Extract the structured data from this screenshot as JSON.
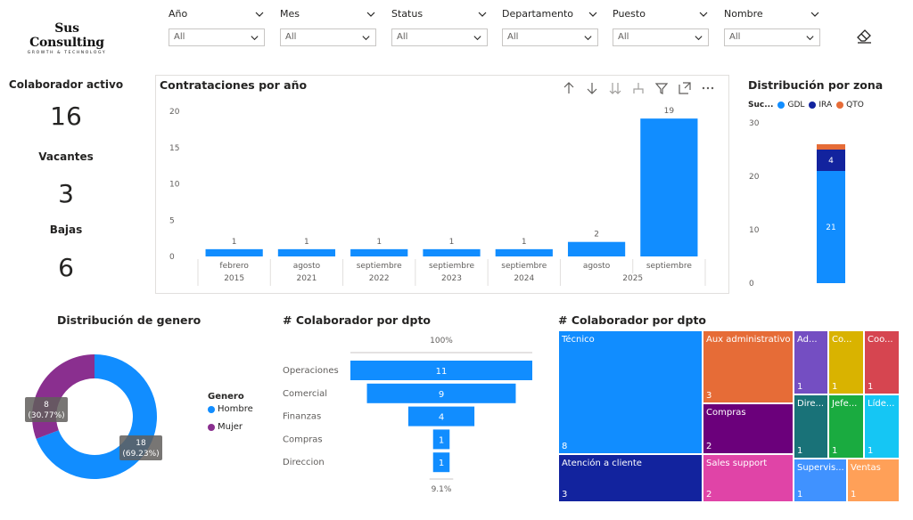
{
  "logo": {
    "name": "Sus Consulting",
    "tagline": "GROWTH & TECHNOLOGY"
  },
  "slicers": [
    {
      "label": "Año",
      "value": "All"
    },
    {
      "label": "Mes",
      "value": "All"
    },
    {
      "label": "Status",
      "value": "All"
    },
    {
      "label": "Departamento",
      "value": "All"
    },
    {
      "label": "Puesto",
      "value": "All"
    },
    {
      "label": "Nombre",
      "value": "All"
    }
  ],
  "kpis": {
    "activos_label": "Colaborador activo",
    "activos_value": "16",
    "vacantes_label": "Vacantes",
    "vacantes_value": "3",
    "bajas_label": "Bajas",
    "bajas_value": "6"
  },
  "contrataciones": {
    "title": "Contrataciones por año",
    "toolbar_icons": [
      "arrow-up-icon",
      "arrow-down-icon",
      "double-arrow-down-icon",
      "expand-hierarchy-icon",
      "filter-icon",
      "focus-mode-icon",
      "more-options-icon"
    ]
  },
  "zona": {
    "title": "Distribución por zona",
    "legend_title": "Suc...",
    "legend": [
      {
        "name": "GDL",
        "color": "#118DFF"
      },
      {
        "name": "IRA",
        "color": "#12239E"
      },
      {
        "name": "QTO",
        "color": "#E66C37"
      }
    ]
  },
  "genero": {
    "title": "Distribución de genero",
    "legend_title": "Genero",
    "legend": [
      {
        "name": "Hombre",
        "color": "#118DFF"
      },
      {
        "name": "Mujer",
        "color": "#8A2F8F"
      }
    ],
    "labels": {
      "mujer_value": "8",
      "mujer_pct": "(30.77%)",
      "hombre_value": "18",
      "hombre_pct": "(69.23%)"
    }
  },
  "funnel": {
    "title": "# Colaborador por dpto",
    "top_pct": "100%",
    "bottom_pct": "9.1%"
  },
  "treemap": {
    "title": "# Colaborador por dpto"
  },
  "chart_data": [
    {
      "type": "bar",
      "title": "Contrataciones por año",
      "categories": [
        {
          "month": "febrero",
          "year": "2015"
        },
        {
          "month": "agosto",
          "year": "2021"
        },
        {
          "month": "septiembre",
          "year": "2022"
        },
        {
          "month": "septiembre",
          "year": "2023"
        },
        {
          "month": "septiembre",
          "year": "2024"
        },
        {
          "month": "agosto",
          "year": "2025"
        },
        {
          "month": "septiembre",
          "year": "2025"
        }
      ],
      "values": [
        1,
        1,
        1,
        1,
        1,
        2,
        19
      ],
      "ylim": [
        0,
        20
      ],
      "yticks": [
        0,
        5,
        10,
        15,
        20
      ],
      "grid": false,
      "color": "#118DFF"
    },
    {
      "type": "bar",
      "title": "Distribución por zona",
      "stacked": true,
      "series": [
        {
          "name": "GDL",
          "values": [
            21
          ],
          "color": "#118DFF"
        },
        {
          "name": "IRA",
          "values": [
            4
          ],
          "color": "#12239E"
        },
        {
          "name": "QTO",
          "values": [
            1
          ],
          "color": "#E66C37"
        }
      ],
      "ylim": [
        0,
        30
      ],
      "yticks": [
        0,
        10,
        20,
        30
      ]
    },
    {
      "type": "pie",
      "title": "Distribución de genero",
      "donut": true,
      "slices": [
        {
          "name": "Hombre",
          "value": 18,
          "pct": "69.23%",
          "color": "#118DFF"
        },
        {
          "name": "Mujer",
          "value": 8,
          "pct": "30.77%",
          "color": "#8A2F8F"
        }
      ]
    },
    {
      "type": "bar",
      "title": "# Colaborador por dpto",
      "subtype": "funnel",
      "categories": [
        "Operaciones",
        "Comercial",
        "Finanzas",
        "Compras",
        "Direccion"
      ],
      "values": [
        11,
        9,
        4,
        1,
        1
      ],
      "color": "#118DFF"
    },
    {
      "type": "heatmap",
      "subtype": "treemap",
      "title": "# Colaborador por dpto",
      "items": [
        {
          "name": "Técnico",
          "value": 8,
          "color": "#118DFF"
        },
        {
          "name": "Aux administrativo",
          "value": 3,
          "color": "#E66C37"
        },
        {
          "name": "Ad...",
          "value": 1,
          "color": "#744EC2"
        },
        {
          "name": "Co...",
          "value": 1,
          "color": "#D9B300"
        },
        {
          "name": "Coo...",
          "value": 1,
          "color": "#D64550"
        },
        {
          "name": "Compras",
          "value": 2,
          "color": "#6B007B"
        },
        {
          "name": "Dire...",
          "value": 1,
          "color": "#197278"
        },
        {
          "name": "Jefe...",
          "value": 1,
          "color": "#1AAB40"
        },
        {
          "name": "Líde...",
          "value": 1,
          "color": "#15C6F4"
        },
        {
          "name": "Atención a cliente",
          "value": 3,
          "color": "#12239E"
        },
        {
          "name": "Sales support",
          "value": 2,
          "color": "#E044A7"
        },
        {
          "name": "Supervis...",
          "value": 1,
          "color": "#4092FF"
        },
        {
          "name": "Ventas",
          "value": 1,
          "color": "#FFA058"
        }
      ]
    }
  ]
}
